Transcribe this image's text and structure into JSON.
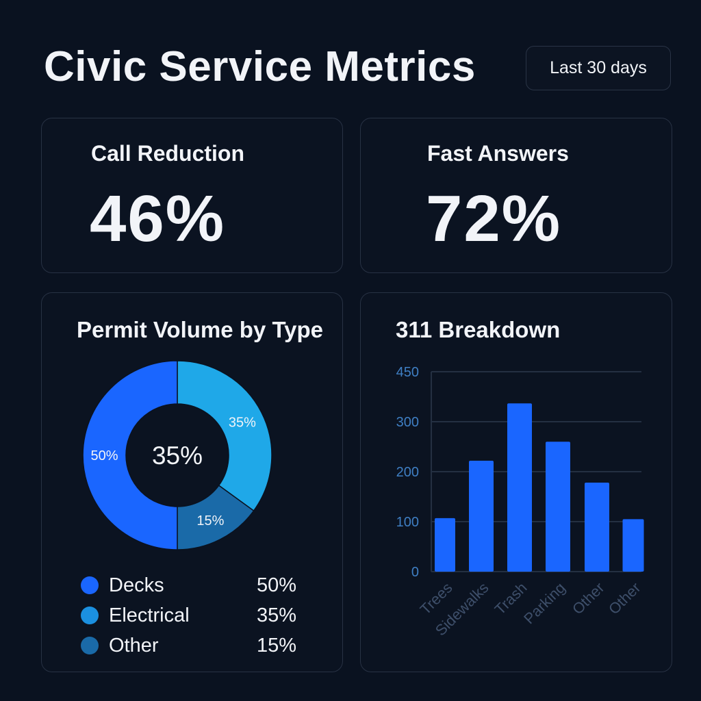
{
  "header": {
    "title": "Civic Service Metrics",
    "range_label": "Last 30 days"
  },
  "kpis": [
    {
      "label": "Call Reduction",
      "value": "46%"
    },
    {
      "label": "Fast Answers",
      "value": "72%"
    }
  ],
  "colors": {
    "background": "#0a1220",
    "bar": "#1a66ff",
    "decks": "#1a66ff",
    "electrical": "#1fa8e8",
    "other": "#1a6aa8"
  },
  "chart_data": [
    {
      "type": "pie",
      "title": "Permit Volume by Type",
      "center_label": "35%",
      "categories": [
        "Decks",
        "Electrical",
        "Other"
      ],
      "values": [
        50,
        35,
        15
      ],
      "slice_labels": [
        "50%",
        "35%",
        "15%"
      ],
      "colors": [
        "#1a66ff",
        "#1fa8e8",
        "#1a6aa8"
      ],
      "legend": [
        {
          "name": "Decks",
          "value": "50%",
          "color": "#1a66ff"
        },
        {
          "name": "Electrical",
          "value": "35%",
          "color": "#1b90e0"
        },
        {
          "name": "Other",
          "value": "15%",
          "color": "#1a6aa8"
        }
      ],
      "legend_placement": "bottom"
    },
    {
      "type": "bar",
      "title": "311 Breakdown",
      "categories": [
        "Trees",
        "Sidewalks",
        "Trash",
        "Parking",
        "Other",
        "Other"
      ],
      "values": [
        107,
        222,
        355,
        260,
        178,
        105
      ],
      "yticks": [
        "0",
        "100",
        "200",
        "300",
        "450"
      ],
      "ytick_values": [
        0,
        100,
        200,
        300,
        450
      ],
      "ylim": [
        0,
        450
      ],
      "grid": true,
      "color": "#1a66ff"
    }
  ]
}
